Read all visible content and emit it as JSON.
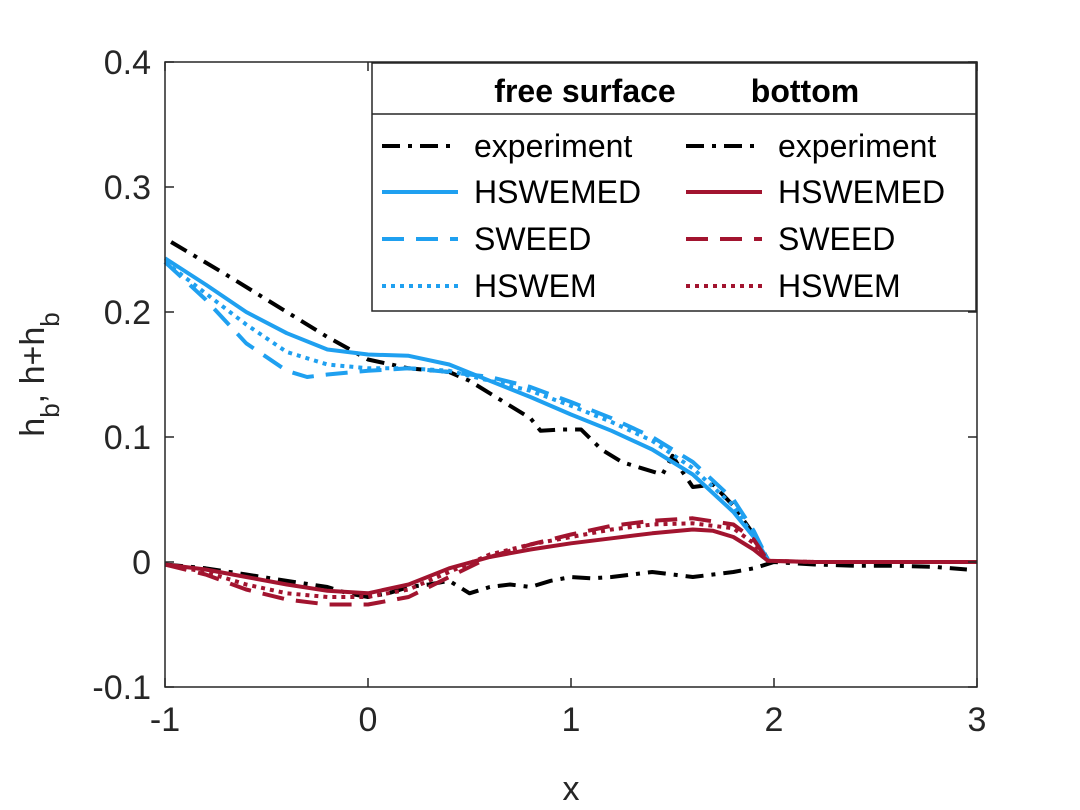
{
  "chart_data": {
    "type": "line",
    "xlabel": "x",
    "ylabel": "h_b, h+h_b",
    "xlim": [
      -1,
      3
    ],
    "ylim": [
      -0.1,
      0.4
    ],
    "x_ticks": [
      -1,
      0,
      1,
      2,
      3
    ],
    "x_tick_labels": [
      "-1",
      "0",
      "1",
      "2",
      "3"
    ],
    "y_ticks": [
      -0.1,
      0,
      0.1,
      0.2,
      0.3,
      0.4
    ],
    "y_tick_labels": [
      "-0.1",
      "0",
      "0.1",
      "0.2",
      "0.3",
      "0.4"
    ],
    "grid": false,
    "legend": {
      "placement": "top-right",
      "headers": [
        "free surface",
        "bottom"
      ],
      "columns": [
        [
          {
            "label": "experiment",
            "color": "#000000",
            "style": "dashdot"
          },
          {
            "label": "HSWEMED",
            "color": "#1fa0f0",
            "style": "solid"
          },
          {
            "label": "SWEED",
            "color": "#1fa0f0",
            "style": "dashed"
          },
          {
            "label": "HSWEM",
            "color": "#1fa0f0",
            "style": "dotted"
          }
        ],
        [
          {
            "label": "experiment",
            "color": "#000000",
            "style": "dashdot"
          },
          {
            "label": "HSWEMED",
            "color": "#a2142f",
            "style": "solid"
          },
          {
            "label": "SWEED",
            "color": "#a2142f",
            "style": "dashed"
          },
          {
            "label": "HSWEM",
            "color": "#a2142f",
            "style": "dotted"
          }
        ]
      ]
    },
    "series": [
      {
        "name": "free surface experiment",
        "color": "#000000",
        "style": "dashdot",
        "x": [
          -0.97,
          -0.7,
          -0.4,
          -0.2,
          0.0,
          0.2,
          0.4,
          0.5,
          0.6,
          0.7,
          0.8,
          0.85,
          0.95,
          1.05,
          1.15,
          1.25,
          1.35,
          1.45,
          1.5,
          1.55,
          1.6,
          1.7,
          1.8,
          1.9,
          1.97
        ],
        "y": [
          0.256,
          0.23,
          0.2,
          0.18,
          0.162,
          0.155,
          0.152,
          0.145,
          0.135,
          0.125,
          0.115,
          0.105,
          0.106,
          0.106,
          0.09,
          0.08,
          0.075,
          0.07,
          0.085,
          0.072,
          0.06,
          0.062,
          0.045,
          0.022,
          0.002
        ]
      },
      {
        "name": "free surface HSWEMED",
        "color": "#1fa0f0",
        "style": "solid",
        "x": [
          -1.0,
          -0.8,
          -0.6,
          -0.4,
          -0.2,
          0.0,
          0.2,
          0.4,
          0.6,
          0.8,
          1.0,
          1.2,
          1.4,
          1.6,
          1.8,
          1.9,
          1.97
        ],
        "y": [
          0.243,
          0.222,
          0.2,
          0.183,
          0.17,
          0.166,
          0.165,
          0.158,
          0.145,
          0.132,
          0.118,
          0.105,
          0.09,
          0.07,
          0.04,
          0.02,
          0.002
        ]
      },
      {
        "name": "free surface SWEED",
        "color": "#1fa0f0",
        "style": "dashed",
        "x": [
          -1.0,
          -0.8,
          -0.6,
          -0.4,
          -0.3,
          -0.2,
          0.0,
          0.2,
          0.4,
          0.6,
          0.8,
          1.0,
          1.2,
          1.4,
          1.6,
          1.8,
          1.9,
          1.97
        ],
        "y": [
          0.24,
          0.21,
          0.175,
          0.153,
          0.148,
          0.15,
          0.153,
          0.155,
          0.152,
          0.148,
          0.14,
          0.128,
          0.115,
          0.1,
          0.08,
          0.05,
          0.025,
          0.002
        ]
      },
      {
        "name": "free surface HSWEM",
        "color": "#1fa0f0",
        "style": "dotted",
        "x": [
          -1.0,
          -0.8,
          -0.6,
          -0.4,
          -0.2,
          0.0,
          0.2,
          0.4,
          0.6,
          0.8,
          1.0,
          1.2,
          1.4,
          1.6,
          1.8,
          1.9,
          1.97
        ],
        "y": [
          0.24,
          0.215,
          0.19,
          0.168,
          0.158,
          0.155,
          0.155,
          0.153,
          0.145,
          0.137,
          0.125,
          0.112,
          0.097,
          0.075,
          0.045,
          0.02,
          0.002
        ]
      },
      {
        "name": "bottom experiment",
        "color": "#000000",
        "style": "dashdot",
        "x": [
          -1.0,
          -0.8,
          -0.6,
          -0.4,
          -0.2,
          -0.1,
          0.0,
          0.1,
          0.2,
          0.3,
          0.4,
          0.5,
          0.6,
          0.7,
          0.8,
          0.9,
          1.0,
          1.1,
          1.2,
          1.3,
          1.4,
          1.5,
          1.6,
          1.7,
          1.8,
          1.9,
          2.0,
          2.2,
          2.4,
          2.6,
          2.8,
          2.95
        ],
        "y": [
          -0.002,
          -0.005,
          -0.01,
          -0.015,
          -0.02,
          -0.025,
          -0.028,
          -0.025,
          -0.02,
          -0.018,
          -0.015,
          -0.025,
          -0.02,
          -0.018,
          -0.02,
          -0.015,
          -0.012,
          -0.013,
          -0.012,
          -0.01,
          -0.008,
          -0.01,
          -0.012,
          -0.01,
          -0.008,
          -0.005,
          0.0,
          -0.002,
          -0.003,
          -0.003,
          -0.004,
          -0.006
        ]
      },
      {
        "name": "bottom HSWEMED",
        "color": "#a2142f",
        "style": "solid",
        "x": [
          -1.0,
          -0.8,
          -0.6,
          -0.4,
          -0.2,
          0.0,
          0.2,
          0.4,
          0.6,
          0.8,
          1.0,
          1.2,
          1.4,
          1.6,
          1.7,
          1.8,
          1.9,
          1.97,
          2.2,
          2.5,
          3.0
        ],
        "y": [
          -0.002,
          -0.006,
          -0.012,
          -0.018,
          -0.023,
          -0.025,
          -0.018,
          -0.005,
          0.004,
          0.01,
          0.015,
          0.019,
          0.023,
          0.026,
          0.025,
          0.02,
          0.01,
          0.001,
          0.0,
          0.0,
          0.0
        ]
      },
      {
        "name": "bottom SWEED",
        "color": "#a2142f",
        "style": "dashed",
        "x": [
          -1.0,
          -0.8,
          -0.6,
          -0.4,
          -0.2,
          0.0,
          0.2,
          0.4,
          0.6,
          0.8,
          1.0,
          1.2,
          1.4,
          1.6,
          1.8,
          1.9,
          1.97,
          2.2,
          2.5,
          3.0
        ],
        "y": [
          -0.002,
          -0.01,
          -0.022,
          -0.03,
          -0.034,
          -0.034,
          -0.028,
          -0.012,
          0.004,
          0.014,
          0.022,
          0.029,
          0.033,
          0.035,
          0.03,
          0.018,
          0.001,
          0.0,
          0.0,
          0.0
        ]
      },
      {
        "name": "bottom HSWEM",
        "color": "#a2142f",
        "style": "dotted",
        "x": [
          -1.0,
          -0.8,
          -0.6,
          -0.4,
          -0.2,
          0.0,
          0.2,
          0.4,
          0.6,
          0.8,
          1.0,
          1.2,
          1.4,
          1.6,
          1.8,
          1.9,
          1.97,
          2.2,
          2.5,
          3.0
        ],
        "y": [
          -0.002,
          -0.008,
          -0.018,
          -0.025,
          -0.028,
          -0.028,
          -0.022,
          -0.008,
          0.006,
          0.014,
          0.02,
          0.026,
          0.03,
          0.031,
          0.027,
          0.015,
          0.001,
          0.0,
          0.0,
          0.0
        ]
      }
    ]
  }
}
